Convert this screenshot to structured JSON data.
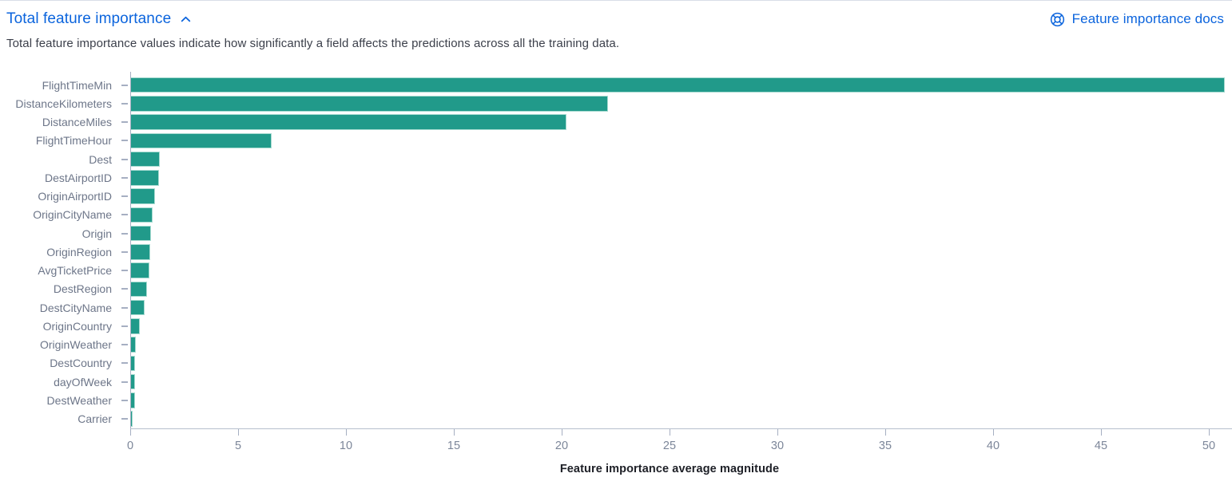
{
  "header": {
    "title": "Total feature importance",
    "docs_link_label": "Feature importance docs"
  },
  "subtitle": "Total feature importance values indicate how significantly a field affects the predictions across all the training data.",
  "colors": {
    "link_blue": "#0b64dd",
    "bar_fill": "#219a8a",
    "bar_border": "#a8dbd1",
    "axis_line": "#a6afc2",
    "category_label": "#6d7689",
    "tick_label": "#7c8699",
    "subtitle_text": "#3b3f4a",
    "axis_title_text": "#1d1f26"
  },
  "chart_data": {
    "type": "bar",
    "orientation": "horizontal",
    "title": "Total feature importance",
    "xlabel": "Feature importance average magnitude",
    "ylabel": "",
    "categories": [
      "FlightTimeMin",
      "DistanceKilometers",
      "DistanceMiles",
      "FlightTimeHour",
      "Dest",
      "DestAirportID",
      "OriginAirportID",
      "OriginCityName",
      "Origin",
      "OriginRegion",
      "AvgTicketPrice",
      "DestRegion",
      "DestCityName",
      "OriginCountry",
      "OriginWeather",
      "DestCountry",
      "dayOfWeek",
      "DestWeather",
      "Carrier"
    ],
    "values": [
      50.7,
      22.1,
      20.2,
      6.5,
      1.35,
      1.3,
      1.1,
      1.0,
      0.93,
      0.88,
      0.85,
      0.74,
      0.62,
      0.4,
      0.21,
      0.18,
      0.2,
      0.18,
      0.07
    ],
    "x_ticks": [
      0,
      5,
      10,
      15,
      20,
      25,
      30,
      35,
      40,
      45,
      50
    ],
    "xlim": [
      0,
      51.1
    ],
    "grid": false,
    "legend": false
  }
}
